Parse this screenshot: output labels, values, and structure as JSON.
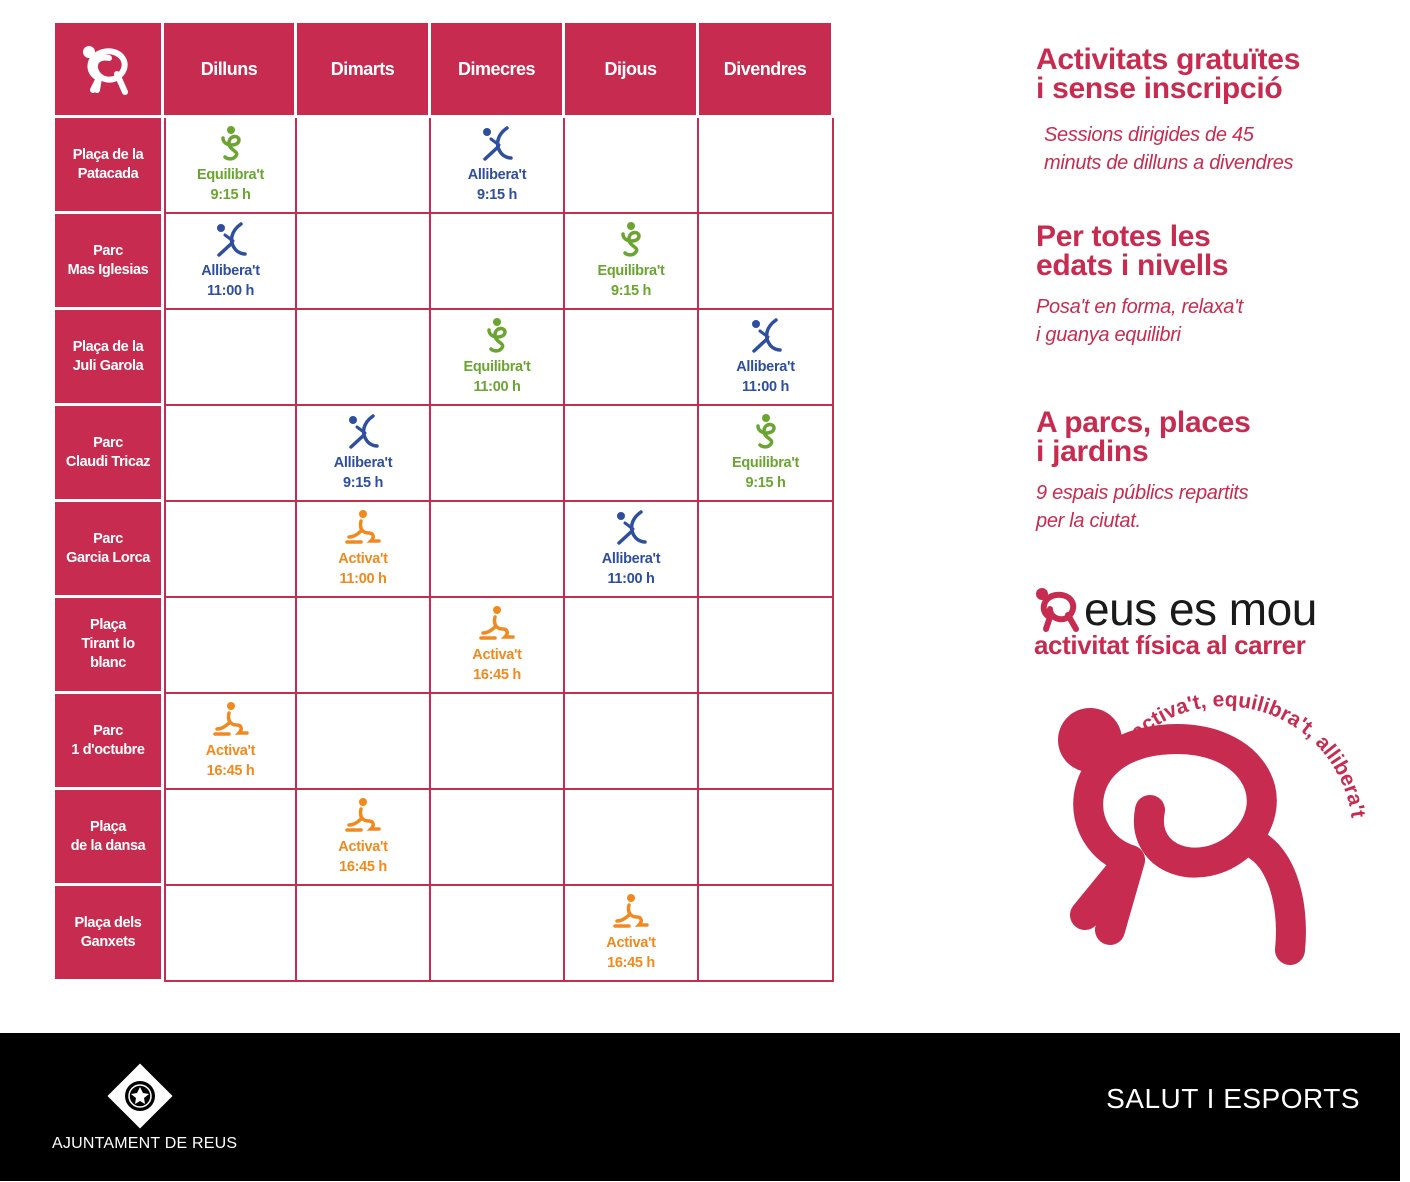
{
  "schedule": {
    "days": [
      "Dilluns",
      "Dimarts",
      "Dimecres",
      "Dijous",
      "Divendres"
    ],
    "locations": [
      {
        "name": "Plaça de la\nPatacada",
        "sessions": [
          {
            "day": 0,
            "activity": "Equilibra't",
            "time": "9:15 h",
            "type": "equilibra"
          },
          {
            "day": 2,
            "activity": "Allibera't",
            "time": "9:15 h",
            "type": "allibera"
          }
        ]
      },
      {
        "name": "Parc\nMas Iglesias",
        "sessions": [
          {
            "day": 0,
            "activity": "Allibera't",
            "time": "11:00 h",
            "type": "allibera"
          },
          {
            "day": 3,
            "activity": "Equilibra't",
            "time": "9:15 h",
            "type": "equilibra"
          }
        ]
      },
      {
        "name": "Plaça de la\nJuli Garola",
        "sessions": [
          {
            "day": 2,
            "activity": "Equilibra't",
            "time": "11:00 h",
            "type": "equilibra"
          },
          {
            "day": 4,
            "activity": "Allibera't",
            "time": "11:00 h",
            "type": "allibera"
          }
        ]
      },
      {
        "name": "Parc\nClaudi Tricaz",
        "sessions": [
          {
            "day": 1,
            "activity": "Allibera't",
            "time": "9:15 h",
            "type": "allibera"
          },
          {
            "day": 4,
            "activity": "Equilibra't",
            "time": "9:15 h",
            "type": "equilibra"
          }
        ]
      },
      {
        "name": "Parc\nGarcia Lorca",
        "sessions": [
          {
            "day": 1,
            "activity": "Activa't",
            "time": "11:00 h",
            "type": "activa"
          },
          {
            "day": 3,
            "activity": "Allibera't",
            "time": "11:00 h",
            "type": "allibera"
          }
        ]
      },
      {
        "name": "Plaça\nTirant lo\nblanc",
        "sessions": [
          {
            "day": 2,
            "activity": "Activa't",
            "time": "16:45 h",
            "type": "activa"
          }
        ]
      },
      {
        "name": "Parc\n1 d'octubre",
        "sessions": [
          {
            "day": 0,
            "activity": "Activa't",
            "time": "16:45 h",
            "type": "activa"
          }
        ]
      },
      {
        "name": "Plaça\nde la dansa",
        "sessions": [
          {
            "day": 1,
            "activity": "Activa't",
            "time": "16:45 h",
            "type": "activa"
          }
        ]
      },
      {
        "name": "Plaça dels\nGanxets",
        "sessions": [
          {
            "day": 3,
            "activity": "Activa't",
            "time": "16:45 h",
            "type": "activa"
          }
        ]
      }
    ]
  },
  "info": [
    {
      "heading": "Activitats gratuïtes\ni sense inscripció",
      "text": "Sessions dirigides de 45\nminuts de dilluns a divendres"
    },
    {
      "heading": "Per totes les\nedats i nivells",
      "text": "Posa't en forma, relaxa't\ni guanya equilibri"
    },
    {
      "heading": "A parcs, places\ni jardins",
      "text": "9 espais públics repartits\nper la ciutat."
    }
  ],
  "brand": {
    "title": "eus es mou",
    "subtitle": "activitat física al carrer",
    "slogan": "activa't, equilibra't, allibera't"
  },
  "footer": {
    "council": "AJUNTAMENT DE REUS",
    "department": "SALUT I ESPORTS"
  },
  "colors": {
    "brand": "#c72c50",
    "equilibra": "#6aa532",
    "allibera": "#2e4f9e",
    "activa": "#f08a1e",
    "footer": "#000000"
  },
  "icons": {
    "equilibra": "balance-figure-icon",
    "allibera": "stretch-figure-icon",
    "activa": "active-figure-icon"
  }
}
